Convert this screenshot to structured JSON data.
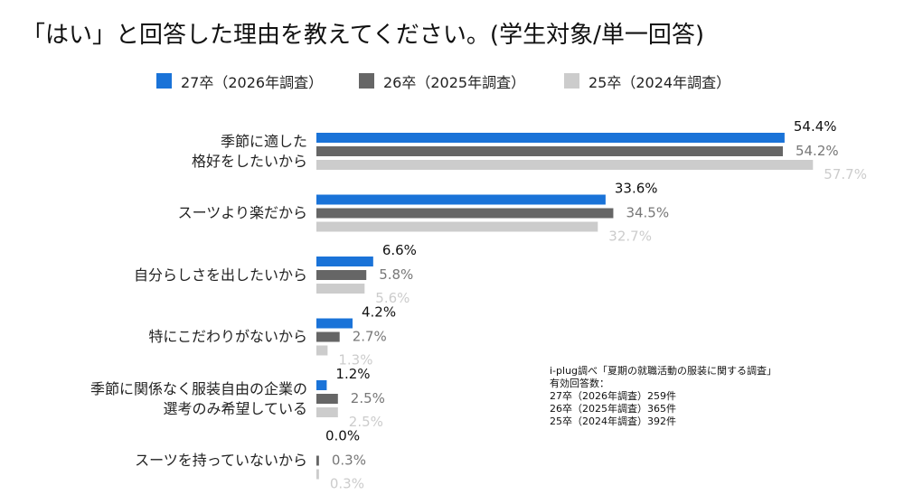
{
  "chart_data": {
    "type": "bar",
    "orientation": "horizontal",
    "title": "「はい」と回答した理由を教えてください。(学生対象/単一回答)",
    "categories": [
      "季節に適した\n格好をしたいから",
      "スーツより楽だから",
      "自分らしさを出したいから",
      "特にこだわりがないから",
      "季節に関係なく服装自由の企業の\n選考のみ希望している",
      "スーツを持っていないから"
    ],
    "series": [
      {
        "name": "27卒（2026年調査）",
        "color": "#1a73d8",
        "label_color": "#111111",
        "values": [
          54.4,
          33.6,
          6.6,
          4.2,
          1.2,
          0.0
        ],
        "value_labels": [
          "54.4%",
          "33.6%",
          "6.6%",
          "4.2%",
          "1.2%",
          "0.0%"
        ]
      },
      {
        "name": "26卒（2025年調査）",
        "color": "#666666",
        "label_color": "#777777",
        "values": [
          54.2,
          34.5,
          5.8,
          2.7,
          2.5,
          0.3
        ],
        "value_labels": [
          "54.2%",
          "34.5%",
          "5.8%",
          "2.7%",
          "2.5%",
          "0.3%"
        ]
      },
      {
        "name": "25卒（2024年調査）",
        "color": "#cccccc",
        "label_color": "#cccccc",
        "values": [
          57.7,
          32.7,
          5.6,
          1.3,
          2.5,
          0.3
        ],
        "value_labels": [
          "57.7%",
          "32.7%",
          "5.6%",
          "1.3%",
          "2.5%",
          "0.3%"
        ]
      }
    ],
    "notes": [
      "i-plug調べ「夏期の就職活動の服装に関する調査」",
      "有効回答数：",
      "27卒（2026年調査）259件",
      "26卒（2025年調査）365件",
      "25卒（2024年調査）392件"
    ]
  }
}
